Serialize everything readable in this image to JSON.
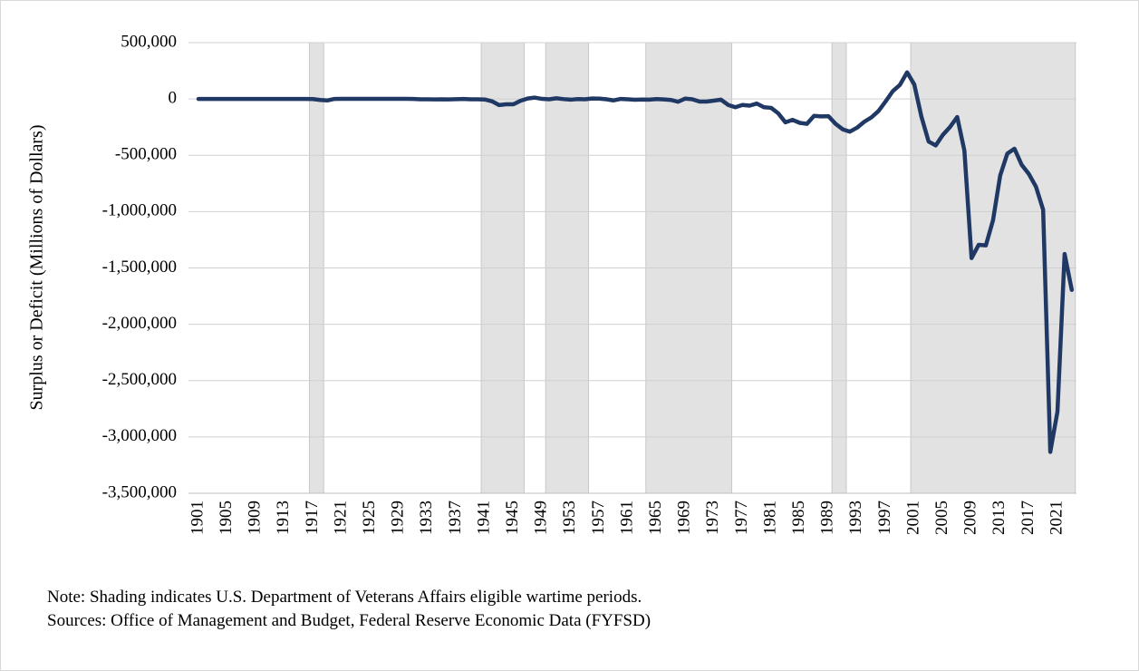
{
  "chart_data": {
    "type": "line",
    "y_label": "Surplus or Deficit (Millions of Dollars)",
    "notes": [
      "Note: Shading indicates U.S. Department of Veterans Affairs eligible wartime periods.",
      "Sources: Office of Management and Budget, Federal Reserve Economic Data (FYFSD)"
    ],
    "categories": [
      1901,
      null,
      null,
      null,
      1905,
      null,
      null,
      null,
      1909,
      null,
      null,
      null,
      1913,
      null,
      null,
      null,
      1917,
      null,
      null,
      null,
      1921,
      null,
      null,
      null,
      1925,
      null,
      null,
      null,
      1929,
      null,
      null,
      null,
      1933,
      null,
      null,
      null,
      1937,
      null,
      null,
      null,
      1941,
      null,
      null,
      null,
      1945,
      null,
      null,
      null,
      1949,
      null,
      null,
      null,
      1953,
      null,
      null,
      null,
      1957,
      null,
      null,
      null,
      1961,
      null,
      null,
      null,
      1965,
      null,
      null,
      null,
      1969,
      null,
      null,
      null,
      1973,
      null,
      null,
      null,
      1977,
      null,
      null,
      null,
      1981,
      null,
      null,
      null,
      1985,
      null,
      null,
      null,
      1989,
      null,
      null,
      null,
      1993,
      null,
      null,
      null,
      1997,
      null,
      null,
      null,
      2001,
      null,
      null,
      null,
      2005,
      null,
      null,
      null,
      2009,
      null,
      null,
      null,
      2013,
      null,
      null,
      null,
      2017,
      null,
      null,
      null,
      2021,
      null,
      null
    ],
    "series": [
      {
        "name": "Surplus or Deficit",
        "color": "#1f3864",
        "values": [
          63,
          77,
          45,
          -43,
          -23,
          25,
          87,
          -57,
          -89,
          -18,
          11,
          3,
          0,
          -1,
          -63,
          48,
          -853,
          -9032,
          -13363,
          291,
          509,
          736,
          713,
          963,
          717,
          865,
          1155,
          939,
          734,
          738,
          -462,
          -2735,
          -2602,
          -3586,
          -2803,
          -4304,
          -2193,
          -89,
          -2846,
          -2920,
          -4941,
          -20503,
          -54554,
          -47557,
          -47553,
          -15936,
          4018,
          11796,
          580,
          -3119,
          6102,
          -1519,
          -6493,
          -1154,
          -2993,
          3947,
          3412,
          -2769,
          -12849,
          301,
          -3335,
          -7146,
          -4756,
          -5915,
          -1411,
          -3698,
          -8643,
          -25161,
          3242,
          -2842,
          -23033,
          -23373,
          -14908,
          -6135,
          -53242,
          -73732,
          -53659,
          -59185,
          -40726,
          -73830,
          -78968,
          -127977,
          -207802,
          -185367,
          -212308,
          -221227,
          -149730,
          -155178,
          -152639,
          -221036,
          -269238,
          -290321,
          -255051,
          -203186,
          -163952,
          -107431,
          -21884,
          69270,
          125610,
          236241,
          128236,
          -157758,
          -377585,
          -412727,
          -318346,
          -248181,
          -160701,
          -458553,
          -1412688,
          -1294373,
          -1299599,
          -1076573,
          -679775,
          -484793,
          -441960,
          -584651,
          -665446,
          -779137,
          -983592,
          -3132460,
          -2775311,
          -1375861,
          -1695000
        ]
      }
    ],
    "shading": [
      {
        "start": 1917,
        "end": 1918
      },
      {
        "start": 1941,
        "end": 1946
      },
      {
        "start": 1950,
        "end": 1955
      },
      {
        "start": 1964,
        "end": 1975
      },
      {
        "start": 1990,
        "end": 1991
      },
      {
        "start": 2001,
        "end": 2023
      }
    ],
    "shading_color": "#e2e2e2",
    "ylim": [
      -3500000,
      500000
    ],
    "yticks": [
      {
        "value": 500000,
        "label": "500,000"
      },
      0,
      {
        "value": -500000,
        "label": "-500,000"
      },
      {
        "value": -1000000,
        "label": "-1,000,000"
      },
      {
        "value": -1500000,
        "label": "-1,500,000"
      },
      {
        "value": -2000000,
        "label": "-2,000,000"
      },
      {
        "value": -2500000,
        "label": "-2,500,000"
      },
      {
        "value": -3000000,
        "label": "-3,000,000"
      },
      {
        "value": -3500000,
        "label": "-3,500,000"
      }
    ],
    "grid": true
  }
}
